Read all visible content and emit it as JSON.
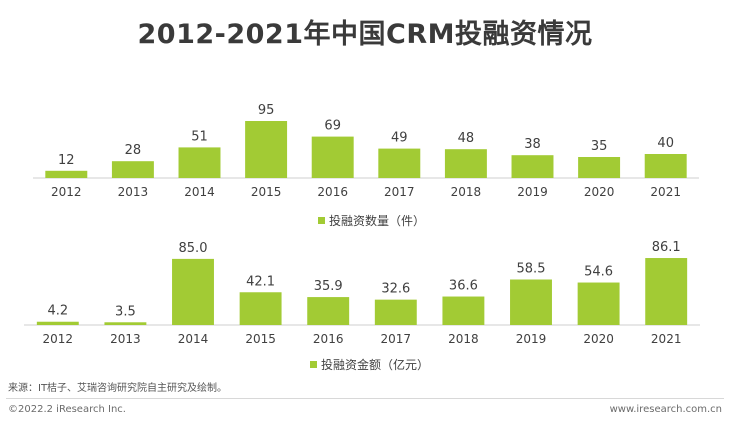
{
  "title": "2012-2021年中国CRM投融资情况",
  "chart_data": [
    {
      "type": "bar",
      "categories": [
        "2012",
        "2013",
        "2014",
        "2015",
        "2016",
        "2017",
        "2018",
        "2019",
        "2020",
        "2021"
      ],
      "values": [
        12,
        28,
        51,
        95,
        69,
        49,
        48,
        38,
        35,
        40
      ],
      "labels": [
        "12",
        "28",
        "51",
        "95",
        "69",
        "49",
        "48",
        "38",
        "35",
        "40"
      ],
      "legend": "投融资数量（件）",
      "ylim": [
        0,
        100
      ],
      "color": "#a2cb34"
    },
    {
      "type": "bar",
      "categories": [
        "2012",
        "2013",
        "2014",
        "2015",
        "2016",
        "2017",
        "2018",
        "2019",
        "2020",
        "2021"
      ],
      "values": [
        4.2,
        3.5,
        85.0,
        42.1,
        35.9,
        32.6,
        36.6,
        58.5,
        54.6,
        86.1
      ],
      "labels": [
        "4.2",
        "3.5",
        "85.0",
        "42.1",
        "35.9",
        "32.6",
        "36.6",
        "58.5",
        "54.6",
        "86.1"
      ],
      "legend": "投融资金额（亿元）",
      "ylim": [
        0,
        90
      ],
      "color": "#a2cb34"
    }
  ],
  "footer": {
    "source": "来源：IT桔子、艾瑞咨询研究院自主研究及绘制。",
    "copyright": "©2022.2 iResearch Inc.",
    "website": "www.iresearch.com.cn"
  }
}
